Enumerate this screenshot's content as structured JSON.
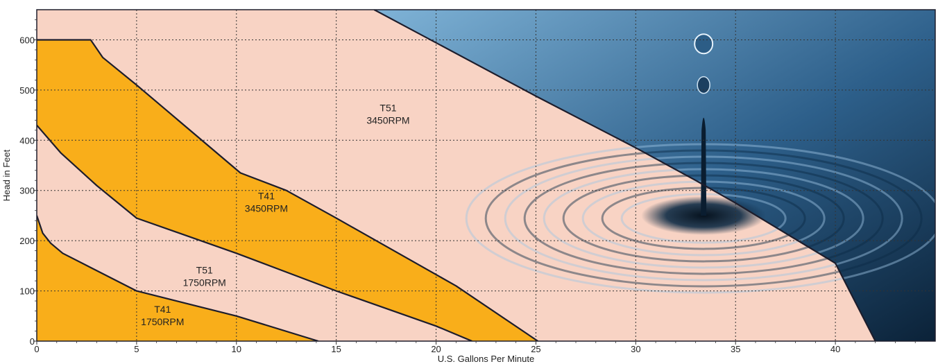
{
  "chart_data": {
    "type": "area",
    "title": "",
    "xlabel": "U.S. Gallons Per Minute",
    "ylabel": "Head in Feet",
    "xlim": [
      0,
      45
    ],
    "ylim": [
      0,
      660
    ],
    "x_ticks": [
      0,
      5,
      10,
      15,
      20,
      25,
      30,
      35,
      40
    ],
    "y_ticks": [
      0,
      100,
      200,
      300,
      400,
      500,
      600
    ],
    "grid": true,
    "colors": {
      "background": "#f8d3c4",
      "band_fill": "#f9ae1a",
      "curve_stroke": "#1d1d2c",
      "grid": "#333333",
      "water_light": "#7fb3d7",
      "water_dark": "#0b2238"
    },
    "background_image": "water-droplet-ripple-photo",
    "series": [
      {
        "name": "T41 1750RPM",
        "points": [
          [
            0,
            250
          ],
          [
            0.3,
            215
          ],
          [
            0.7,
            195
          ],
          [
            1.3,
            175
          ],
          [
            5,
            100
          ],
          [
            10,
            50
          ],
          [
            14.1,
            0
          ]
        ]
      },
      {
        "name": "T51 1750RPM",
        "points": [
          [
            0,
            430
          ],
          [
            1.2,
            375
          ],
          [
            3,
            310
          ],
          [
            5,
            245
          ],
          [
            10,
            175
          ],
          [
            15,
            100
          ],
          [
            20,
            30
          ],
          [
            21.8,
            0
          ]
        ]
      },
      {
        "name": "T41 3450RPM",
        "points": [
          [
            0,
            600
          ],
          [
            2.7,
            600
          ],
          [
            3.3,
            565
          ],
          [
            5,
            510
          ],
          [
            10.2,
            335
          ],
          [
            12.5,
            300
          ],
          [
            15,
            245
          ],
          [
            21,
            110
          ],
          [
            25.1,
            0
          ]
        ]
      },
      {
        "name": "T51 3450RPM",
        "points": [
          [
            16.9,
            660
          ],
          [
            25,
            488
          ],
          [
            30,
            385
          ],
          [
            33,
            320
          ],
          [
            35,
            275
          ],
          [
            40,
            155
          ],
          [
            42,
            0
          ]
        ]
      }
    ],
    "region_labels": [
      {
        "name": "T51",
        "sub": "3450RPM",
        "x": 17.6,
        "y": 445
      },
      {
        "name": "T41",
        "sub": "3450RPM",
        "x": 11.5,
        "y": 270
      },
      {
        "name": "T51",
        "sub": "1750RPM",
        "x": 8.4,
        "y": 122
      },
      {
        "name": "T41",
        "sub": "1750RPM",
        "x": 6.3,
        "y": 44
      }
    ]
  }
}
